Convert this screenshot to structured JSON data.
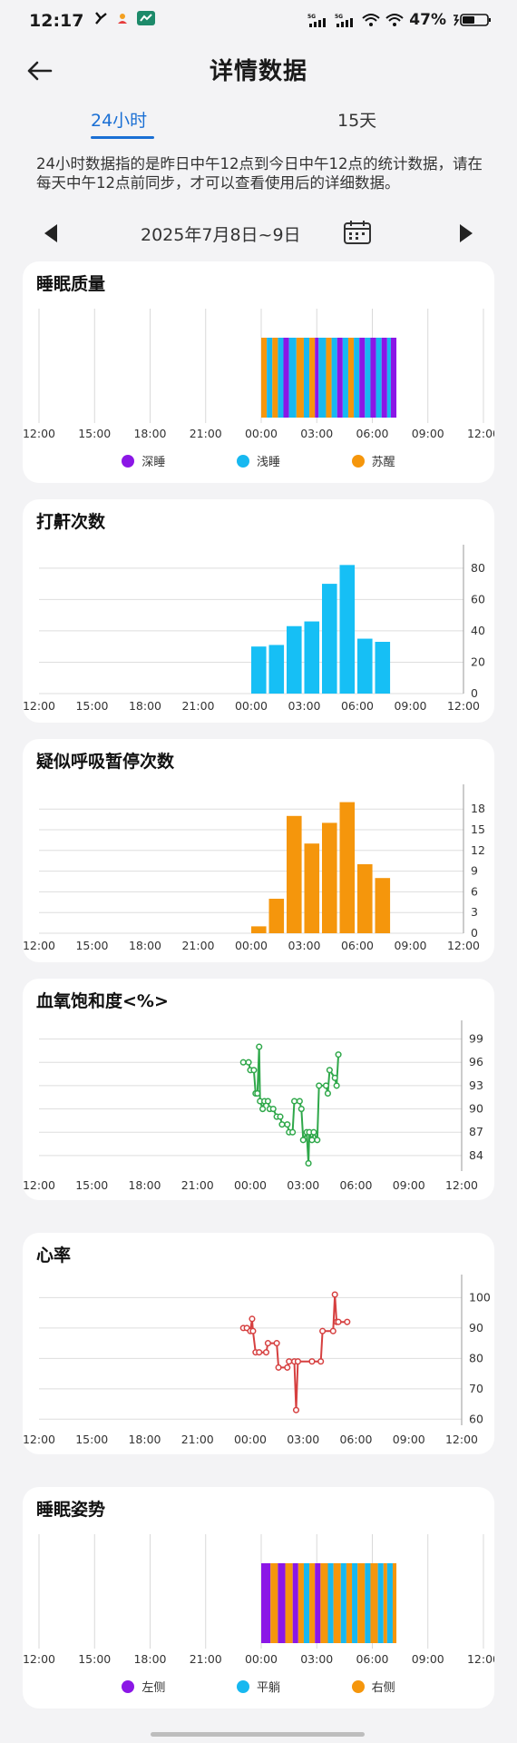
{
  "status_bar": {
    "time": "12:17",
    "battery": "47%"
  },
  "header": {
    "title": "详情数据"
  },
  "tabs": [
    {
      "label": "24小时",
      "active": true
    },
    {
      "label": "15天",
      "active": false
    }
  ],
  "notice": "24小时数据指的是昨日中午12点到今日中午12点的统计数据，请在每天中午12点前同步，才可以查看使用后的详细数据。",
  "date_range": "2025年7月8日~9日",
  "colors": {
    "deep": "#8b17e6",
    "light": "#17b8f0",
    "awake": "#f5960c",
    "snore": "#16bff5",
    "apnea": "#f5960c",
    "spo2": "#2fa84a",
    "heart": "#d64040",
    "left_side": "#8b17e6",
    "flat": "#17b8f0",
    "right_side": "#f5960c"
  },
  "x_ticks": [
    "12:00",
    "15:00",
    "18:00",
    "21:00",
    "00:00",
    "03:00",
    "06:00",
    "09:00",
    "12:00"
  ],
  "chart_data": [
    {
      "id": "sleep_quality",
      "type": "bar",
      "title": "睡眠质量",
      "x": "time of day (hours from 12:00)",
      "segments": [
        {
          "start": 12.0,
          "end": 12.3,
          "stage": "awake"
        },
        {
          "start": 12.3,
          "end": 12.6,
          "stage": "light"
        },
        {
          "start": 12.6,
          "end": 12.9,
          "stage": "awake"
        },
        {
          "start": 12.9,
          "end": 13.2,
          "stage": "light"
        },
        {
          "start": 13.2,
          "end": 13.5,
          "stage": "deep"
        },
        {
          "start": 13.5,
          "end": 13.9,
          "stage": "light"
        },
        {
          "start": 13.9,
          "end": 14.3,
          "stage": "awake"
        },
        {
          "start": 14.3,
          "end": 14.6,
          "stage": "light"
        },
        {
          "start": 14.6,
          "end": 14.9,
          "stage": "awake"
        },
        {
          "start": 14.9,
          "end": 15.1,
          "stage": "deep"
        },
        {
          "start": 15.1,
          "end": 15.5,
          "stage": "light"
        },
        {
          "start": 15.5,
          "end": 15.8,
          "stage": "awake"
        },
        {
          "start": 15.8,
          "end": 16.1,
          "stage": "light"
        },
        {
          "start": 16.1,
          "end": 16.4,
          "stage": "deep"
        },
        {
          "start": 16.4,
          "end": 16.7,
          "stage": "light"
        },
        {
          "start": 16.7,
          "end": 17.0,
          "stage": "awake"
        },
        {
          "start": 17.0,
          "end": 17.3,
          "stage": "light"
        },
        {
          "start": 17.3,
          "end": 17.6,
          "stage": "deep"
        },
        {
          "start": 17.6,
          "end": 17.9,
          "stage": "light"
        },
        {
          "start": 17.9,
          "end": 18.2,
          "stage": "deep"
        },
        {
          "start": 18.2,
          "end": 18.5,
          "stage": "light"
        },
        {
          "start": 18.5,
          "end": 18.8,
          "stage": "deep"
        },
        {
          "start": 18.8,
          "end": 19.0,
          "stage": "light"
        },
        {
          "start": 19.0,
          "end": 19.3,
          "stage": "deep"
        }
      ],
      "legend": [
        {
          "label": "深睡",
          "color_key": "deep"
        },
        {
          "label": "浅睡",
          "color_key": "light"
        },
        {
          "label": "苏醒",
          "color_key": "awake"
        }
      ]
    },
    {
      "id": "snore",
      "type": "bar",
      "title": "打鼾次数",
      "y_ticks": [
        0,
        20,
        40,
        60,
        80
      ],
      "ylim": [
        0,
        88
      ],
      "bars": [
        {
          "x": 12.0,
          "value": 30
        },
        {
          "x": 13.0,
          "value": 31
        },
        {
          "x": 14.0,
          "value": 43
        },
        {
          "x": 15.0,
          "value": 46
        },
        {
          "x": 16.0,
          "value": 70
        },
        {
          "x": 17.0,
          "value": 82
        },
        {
          "x": 18.0,
          "value": 35
        },
        {
          "x": 19.0,
          "value": 33
        }
      ]
    },
    {
      "id": "apnea",
      "type": "bar",
      "title": "疑似呼吸暂停次数",
      "y_ticks": [
        0,
        3,
        6,
        9,
        12,
        15,
        18
      ],
      "ylim": [
        0,
        20
      ],
      "bars": [
        {
          "x": 12.0,
          "value": 1
        },
        {
          "x": 13.0,
          "value": 5
        },
        {
          "x": 14.0,
          "value": 17
        },
        {
          "x": 15.0,
          "value": 13
        },
        {
          "x": 16.0,
          "value": 16
        },
        {
          "x": 17.0,
          "value": 19
        },
        {
          "x": 18.0,
          "value": 10
        },
        {
          "x": 19.0,
          "value": 8
        }
      ]
    },
    {
      "id": "spo2",
      "type": "line",
      "title": "血氧饱和度<%>",
      "y_ticks": [
        84,
        87,
        90,
        93,
        96,
        99
      ],
      "ylim": [
        82,
        100
      ],
      "points": [
        [
          11.6,
          96
        ],
        [
          11.9,
          96
        ],
        [
          12.0,
          95
        ],
        [
          12.2,
          95
        ],
        [
          12.3,
          92
        ],
        [
          12.4,
          92
        ],
        [
          12.5,
          98
        ],
        [
          12.55,
          91
        ],
        [
          12.7,
          90
        ],
        [
          12.8,
          91
        ],
        [
          13.0,
          91
        ],
        [
          13.1,
          90
        ],
        [
          13.3,
          90
        ],
        [
          13.5,
          89
        ],
        [
          13.7,
          89
        ],
        [
          13.8,
          88
        ],
        [
          14.1,
          88
        ],
        [
          14.2,
          87
        ],
        [
          14.4,
          87
        ],
        [
          14.5,
          91
        ],
        [
          14.8,
          91
        ],
        [
          14.9,
          90
        ],
        [
          15.0,
          86
        ],
        [
          15.2,
          87
        ],
        [
          15.3,
          83
        ],
        [
          15.35,
          87
        ],
        [
          15.5,
          86
        ],
        [
          15.6,
          87
        ],
        [
          15.8,
          86
        ],
        [
          15.9,
          93
        ],
        [
          16.3,
          93
        ],
        [
          16.4,
          92
        ],
        [
          16.5,
          95
        ],
        [
          16.8,
          94
        ],
        [
          16.9,
          93
        ],
        [
          17.0,
          97
        ]
      ]
    },
    {
      "id": "heart_rate",
      "type": "line",
      "title": "心率",
      "y_ticks": [
        60,
        70,
        80,
        90,
        100
      ],
      "ylim": [
        58,
        104
      ],
      "points": [
        [
          11.6,
          90
        ],
        [
          11.8,
          90
        ],
        [
          12.0,
          89
        ],
        [
          12.1,
          93
        ],
        [
          12.15,
          89
        ],
        [
          12.3,
          82
        ],
        [
          12.5,
          82
        ],
        [
          12.9,
          82
        ],
        [
          13.0,
          85
        ],
        [
          13.5,
          85
        ],
        [
          13.6,
          77
        ],
        [
          14.1,
          77
        ],
        [
          14.2,
          79
        ],
        [
          14.5,
          79
        ],
        [
          14.6,
          63
        ],
        [
          14.7,
          79
        ],
        [
          15.5,
          79
        ],
        [
          16.0,
          79
        ],
        [
          16.1,
          89
        ],
        [
          16.7,
          89
        ],
        [
          16.8,
          101
        ],
        [
          16.9,
          92
        ],
        [
          17.0,
          92
        ],
        [
          17.5,
          92
        ]
      ]
    },
    {
      "id": "sleep_posture",
      "type": "bar",
      "title": "睡眠姿势",
      "segments": [
        {
          "start": 12.0,
          "end": 12.5,
          "stage": "left_side"
        },
        {
          "start": 12.5,
          "end": 12.9,
          "stage": "right_side"
        },
        {
          "start": 12.9,
          "end": 13.3,
          "stage": "left_side"
        },
        {
          "start": 13.3,
          "end": 13.7,
          "stage": "right_side"
        },
        {
          "start": 13.7,
          "end": 14.0,
          "stage": "left_side"
        },
        {
          "start": 14.0,
          "end": 14.3,
          "stage": "right_side"
        },
        {
          "start": 14.3,
          "end": 14.6,
          "stage": "flat"
        },
        {
          "start": 14.6,
          "end": 14.9,
          "stage": "right_side"
        },
        {
          "start": 14.9,
          "end": 15.2,
          "stage": "left_side"
        },
        {
          "start": 15.2,
          "end": 15.6,
          "stage": "right_side"
        },
        {
          "start": 15.6,
          "end": 15.9,
          "stage": "flat"
        },
        {
          "start": 15.9,
          "end": 16.3,
          "stage": "right_side"
        },
        {
          "start": 16.3,
          "end": 16.6,
          "stage": "flat"
        },
        {
          "start": 16.6,
          "end": 16.9,
          "stage": "right_side"
        },
        {
          "start": 16.9,
          "end": 17.2,
          "stage": "flat"
        },
        {
          "start": 17.2,
          "end": 17.6,
          "stage": "right_side"
        },
        {
          "start": 17.6,
          "end": 17.9,
          "stage": "flat"
        },
        {
          "start": 17.9,
          "end": 18.3,
          "stage": "right_side"
        },
        {
          "start": 18.3,
          "end": 18.6,
          "stage": "flat"
        },
        {
          "start": 18.6,
          "end": 18.8,
          "stage": "right_side"
        },
        {
          "start": 18.8,
          "end": 19.1,
          "stage": "flat"
        },
        {
          "start": 19.1,
          "end": 19.3,
          "stage": "right_side"
        }
      ],
      "legend": [
        {
          "label": "左侧",
          "color_key": "left_side"
        },
        {
          "label": "平躺",
          "color_key": "flat"
        },
        {
          "label": "右侧",
          "color_key": "right_side"
        }
      ]
    }
  ]
}
